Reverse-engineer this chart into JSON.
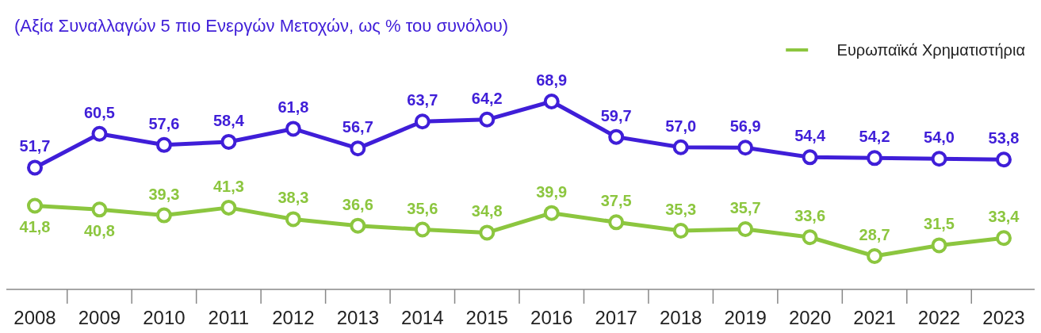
{
  "chart_data": {
    "type": "line",
    "subtitle": "(Αξία Συναλλαγών 5 πιο Ενεργών Μετοχών, ως % του συνόλου)",
    "categories": [
      "2008",
      "2009",
      "2010",
      "2011",
      "2012",
      "2013",
      "2014",
      "2015",
      "2016",
      "2017",
      "2018",
      "2019",
      "2020",
      "2021",
      "2022",
      "2023"
    ],
    "series": [
      {
        "color": "#3f1ed8",
        "values": [
          51.7,
          60.5,
          57.6,
          58.4,
          61.8,
          56.7,
          63.7,
          64.2,
          68.9,
          59.7,
          57.0,
          56.9,
          54.4,
          54.2,
          54.0,
          53.8
        ],
        "value_labels": [
          "51,7",
          "60,5",
          "57,6",
          "58,4",
          "61,8",
          "56,7",
          "63,7",
          "64,2",
          "68,9",
          "59,7",
          "57,0",
          "56,9",
          "54,4",
          "54,2",
          "54,0",
          "53,8"
        ]
      },
      {
        "name": "Ευρωπαϊκά Χρηματιστήρια",
        "color": "#8cc63f",
        "values": [
          41.8,
          40.8,
          39.3,
          41.3,
          38.3,
          36.6,
          35.6,
          34.8,
          39.9,
          37.5,
          35.3,
          35.7,
          33.6,
          28.7,
          31.5,
          33.4
        ],
        "value_labels": [
          "41,8",
          "40,8",
          "39,3",
          "41,3",
          "38,3",
          "36,6",
          "35,6",
          "34,8",
          "39,9",
          "37,5",
          "35,3",
          "35,7",
          "33,6",
          "28,7",
          "31,5",
          "33,4"
        ]
      }
    ],
    "marker": "circle",
    "legend": "top right"
  }
}
